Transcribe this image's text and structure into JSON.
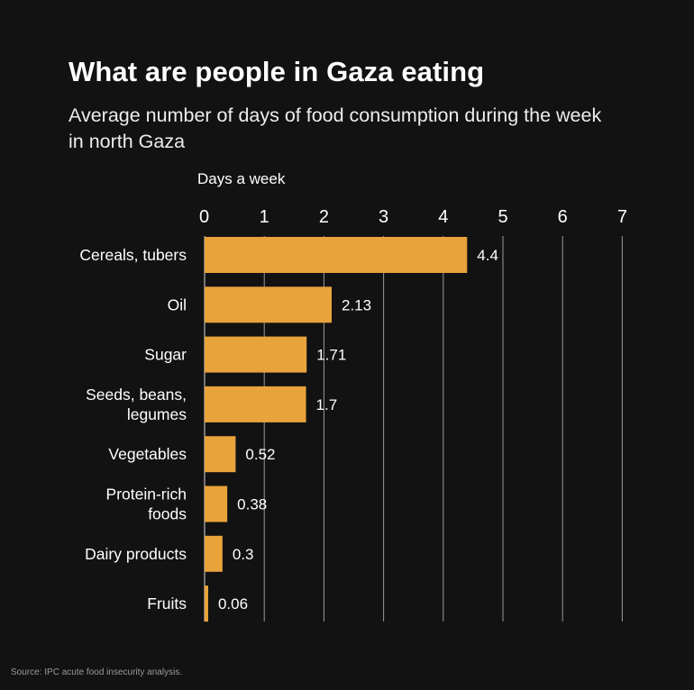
{
  "chart_data": {
    "type": "bar",
    "orientation": "horizontal",
    "title": "What are people in Gaza eating",
    "subtitle": "Average number of days of food consumption during the week in north Gaza",
    "xlabel": "Days a week",
    "ylabel": "",
    "xlim": [
      0,
      7
    ],
    "xticks": [
      "0",
      "1",
      "2",
      "3",
      "4",
      "5",
      "6",
      "7"
    ],
    "grid": true,
    "categories": [
      [
        "Cereals, tubers"
      ],
      [
        "Oil"
      ],
      [
        "Sugar"
      ],
      [
        "Seeds, beans,",
        "legumes"
      ],
      [
        "Vegetables"
      ],
      [
        "Protein-rich",
        "foods"
      ],
      [
        "Dairy products"
      ],
      [
        "Fruits"
      ]
    ],
    "values": [
      4.4,
      2.13,
      1.71,
      1.7,
      0.52,
      0.38,
      0.3,
      0.06
    ],
    "value_labels": [
      "4.4",
      "2.13",
      "1.71",
      "1.7",
      "0.52",
      "0.38",
      "0.3",
      "0.06"
    ],
    "bar_color": "#E9A33B",
    "grid_color": "#9a9a9a"
  },
  "source": "Source: IPC acute food insecurity analysis."
}
